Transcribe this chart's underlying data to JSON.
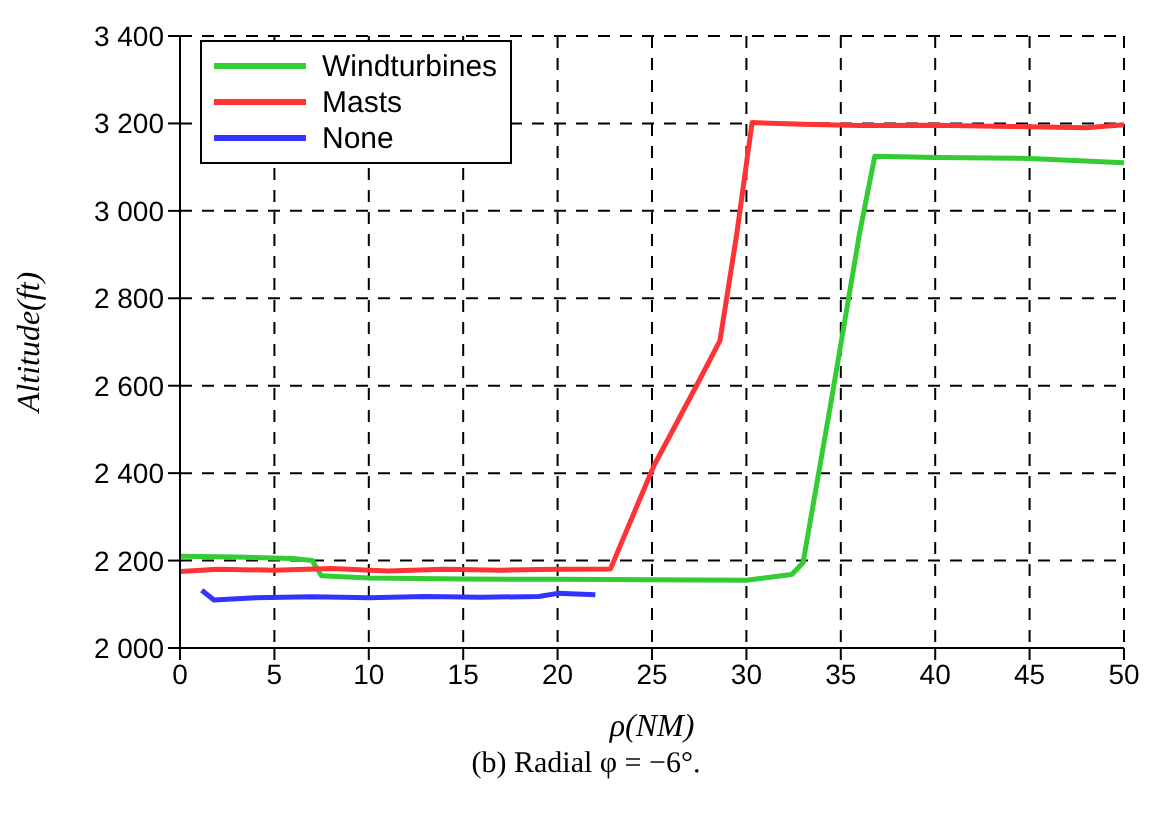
{
  "chart_data": {
    "type": "line",
    "xlabel": "ρ(NM)",
    "ylabel": "Altitude(ft)",
    "annotations": [
      "(b) Radial φ = −6°."
    ],
    "xlim": [
      0,
      50
    ],
    "xticks": [
      0,
      5,
      10,
      15,
      20,
      25,
      30,
      35,
      40,
      45,
      50
    ],
    "ylim": [
      2000,
      3400
    ],
    "yticks": [
      {
        "value": 2000,
        "label": "2 000"
      },
      {
        "value": 2200,
        "label": "2 200"
      },
      {
        "value": 2400,
        "label": "2 400"
      },
      {
        "value": 2600,
        "label": "2 600"
      },
      {
        "value": 2800,
        "label": "2 800"
      },
      {
        "value": 3000,
        "label": "3 000"
      },
      {
        "value": 3200,
        "label": "3 200"
      },
      {
        "value": 3400,
        "label": "3 400"
      }
    ],
    "grid": true,
    "legend": "top left",
    "marker": "none",
    "line_style": "solid",
    "series": [
      {
        "name": "Windturbines",
        "color": "#33cc33",
        "x": [
          0,
          3,
          6,
          7,
          7.5,
          10,
          15,
          20,
          25,
          30,
          32.4,
          33,
          34.5,
          36,
          36.8,
          40,
          45,
          50
        ],
        "values": [
          2210,
          2208,
          2205,
          2200,
          2165,
          2160,
          2158,
          2157,
          2156,
          2155,
          2168,
          2195,
          2567,
          2950,
          3125,
          3122,
          3120,
          3110
        ]
      },
      {
        "name": "Masts",
        "color": "#ff3333",
        "x": [
          0,
          2,
          5,
          8,
          11,
          14,
          17,
          20,
          22.8,
          25.1,
          27.5,
          28.6,
          29.5,
          30.3,
          33,
          36,
          40,
          44,
          48,
          50
        ],
        "values": [
          2175,
          2180,
          2178,
          2182,
          2176,
          2180,
          2178,
          2180,
          2181,
          2417,
          2612,
          2703,
          2950,
          3202,
          3198,
          3195,
          3196,
          3193,
          3190,
          3197
        ]
      },
      {
        "name": "None",
        "color": "#3333ff",
        "x": [
          1.15,
          1.8,
          4,
          7,
          10,
          13,
          16,
          19,
          20,
          22
        ],
        "values": [
          2132,
          2110,
          2115,
          2117,
          2115,
          2118,
          2116,
          2118,
          2125,
          2122
        ]
      }
    ]
  }
}
